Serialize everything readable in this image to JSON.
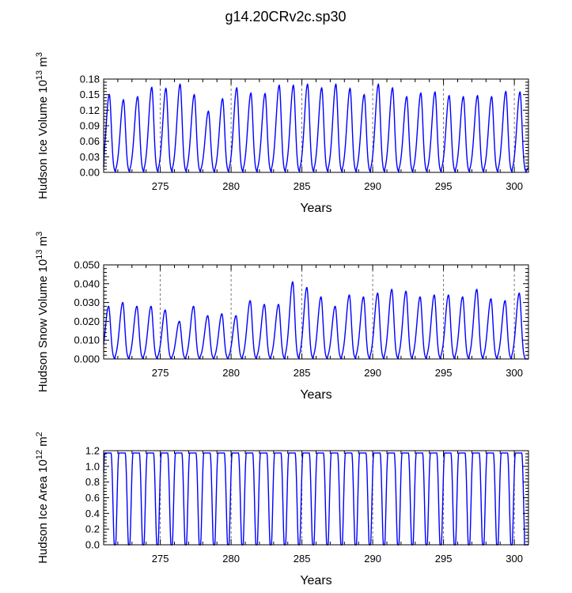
{
  "title": "g14.20CRv2c.sp30",
  "chart_data": [
    {
      "type": "line",
      "name": "ice-volume",
      "ylabel_main": "Hudson Ice Volume 10",
      "ylabel_exp": "13",
      "ylabel_unit": " m",
      "ylabel_unit_exp": "3",
      "xlabel": "Years",
      "xlim": [
        271,
        301
      ],
      "ylim": [
        0,
        0.18
      ],
      "xticks": [
        "275",
        "280",
        "285",
        "290",
        "295",
        "300"
      ],
      "yticks": [
        "0.00",
        "0.03",
        "0.06",
        "0.09",
        "0.12",
        "0.15",
        "0.18"
      ],
      "grid_x": [
        275,
        280,
        285,
        290,
        295,
        300
      ],
      "start_value": 0.01,
      "end_value": 0.01,
      "minimum": 0.0,
      "peak_years": [
        271.4,
        272.4,
        273.4,
        274.4,
        275.4,
        276.4,
        277.4,
        278.4,
        279.4,
        280.4,
        281.4,
        282.4,
        283.4,
        284.4,
        285.4,
        286.4,
        287.4,
        288.4,
        289.4,
        290.4,
        291.4,
        292.4,
        293.4,
        294.4,
        295.4,
        296.4,
        297.4,
        298.4,
        299.4,
        300.4
      ],
      "peaks": [
        0.15,
        0.14,
        0.146,
        0.164,
        0.162,
        0.17,
        0.15,
        0.118,
        0.142,
        0.163,
        0.153,
        0.152,
        0.168,
        0.168,
        0.17,
        0.163,
        0.17,
        0.162,
        0.15,
        0.17,
        0.163,
        0.146,
        0.153,
        0.155,
        0.148,
        0.146,
        0.148,
        0.146,
        0.156,
        0.155
      ]
    },
    {
      "type": "line",
      "name": "snow-volume",
      "ylabel_main": "Hudson Snow Volume 10",
      "ylabel_exp": "13",
      "ylabel_unit": " m",
      "ylabel_unit_exp": "3",
      "xlabel": "Years",
      "xlim": [
        271,
        301
      ],
      "ylim": [
        0,
        0.05
      ],
      "xticks": [
        "275",
        "280",
        "285",
        "290",
        "295",
        "300"
      ],
      "yticks": [
        "0.000",
        "0.010",
        "0.020",
        "0.030",
        "0.040",
        "0.050"
      ],
      "grid_x": [
        275,
        280,
        285,
        290,
        295,
        300
      ],
      "start_value": 0.012,
      "end_value": 0.0,
      "minimum": 0.0,
      "peak_years": [
        271.35,
        272.35,
        273.35,
        274.35,
        275.35,
        276.35,
        277.35,
        278.35,
        279.35,
        280.35,
        281.35,
        282.35,
        283.35,
        284.35,
        285.35,
        286.35,
        287.35,
        288.35,
        289.35,
        290.35,
        291.35,
        292.35,
        293.35,
        294.35,
        295.35,
        296.35,
        297.35,
        298.35,
        299.35,
        300.35
      ],
      "peaks": [
        0.028,
        0.03,
        0.028,
        0.028,
        0.026,
        0.02,
        0.028,
        0.023,
        0.024,
        0.023,
        0.031,
        0.029,
        0.029,
        0.041,
        0.038,
        0.033,
        0.028,
        0.034,
        0.033,
        0.035,
        0.037,
        0.036,
        0.033,
        0.034,
        0.034,
        0.033,
        0.037,
        0.032,
        0.031,
        0.035
      ]
    },
    {
      "type": "line",
      "name": "ice-area",
      "ylabel_main": "Hudson Ice Area 10",
      "ylabel_exp": "12",
      "ylabel_unit": " m",
      "ylabel_unit_exp": "2",
      "xlabel": "Years",
      "xlim": [
        271,
        301
      ],
      "ylim": [
        0,
        1.2
      ],
      "xticks": [
        "275",
        "280",
        "285",
        "290",
        "295",
        "300"
      ],
      "yticks": [
        "0.0",
        "0.2",
        "0.4",
        "0.6",
        "0.8",
        "1.0",
        "1.2"
      ],
      "grid_x": [
        275,
        280,
        285,
        290,
        295,
        300
      ],
      "start_value": 1.17,
      "end_value": 0.0,
      "minimum": 0.0,
      "peak_years": [
        271.3,
        272.3,
        273.3,
        274.3,
        275.3,
        276.3,
        277.3,
        278.3,
        279.3,
        280.3,
        281.3,
        282.3,
        283.3,
        284.3,
        285.3,
        286.3,
        287.3,
        288.3,
        289.3,
        290.3,
        291.3,
        292.3,
        293.3,
        294.3,
        295.3,
        296.3,
        297.3,
        298.3,
        299.3,
        300.3
      ],
      "peaks": [
        1.17,
        1.17,
        1.17,
        1.17,
        1.17,
        1.17,
        1.17,
        1.17,
        1.17,
        1.17,
        1.17,
        1.17,
        1.17,
        1.17,
        1.17,
        1.17,
        1.17,
        1.17,
        1.17,
        1.17,
        1.17,
        1.17,
        1.17,
        1.17,
        1.17,
        1.17,
        1.17,
        1.17,
        1.17,
        1.17
      ]
    }
  ]
}
